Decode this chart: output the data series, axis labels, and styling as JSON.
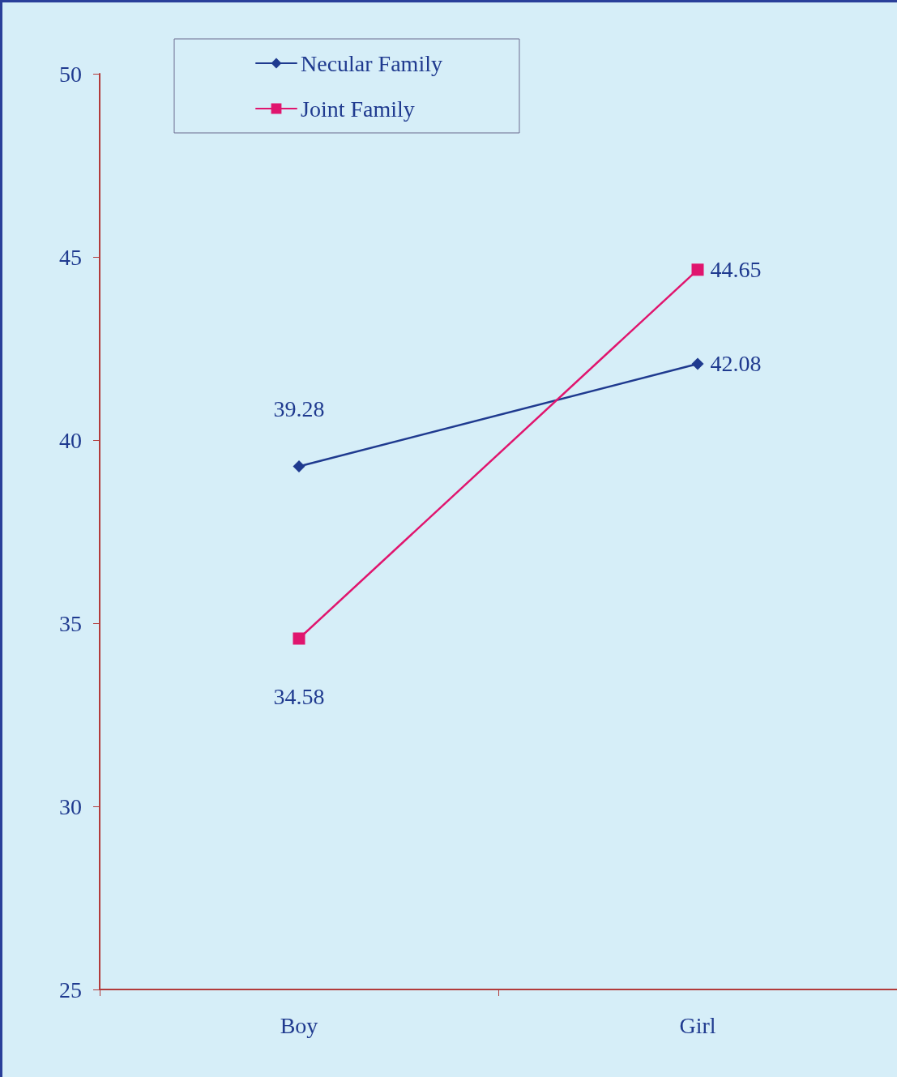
{
  "chart_data": {
    "type": "line",
    "categories": [
      "Boy",
      "Girl"
    ],
    "series": [
      {
        "name": "Necular Family",
        "color": "#1f3a8f",
        "marker": "diamond",
        "values": [
          39.28,
          42.08
        ]
      },
      {
        "name": "Joint Family",
        "color": "#e0156e",
        "marker": "square",
        "values": [
          34.58,
          44.65
        ]
      }
    ],
    "ylim": [
      25,
      50
    ],
    "yticks": [
      25,
      30,
      35,
      40,
      45,
      50
    ],
    "data_labels": true,
    "legend": "top left",
    "grid": false
  }
}
